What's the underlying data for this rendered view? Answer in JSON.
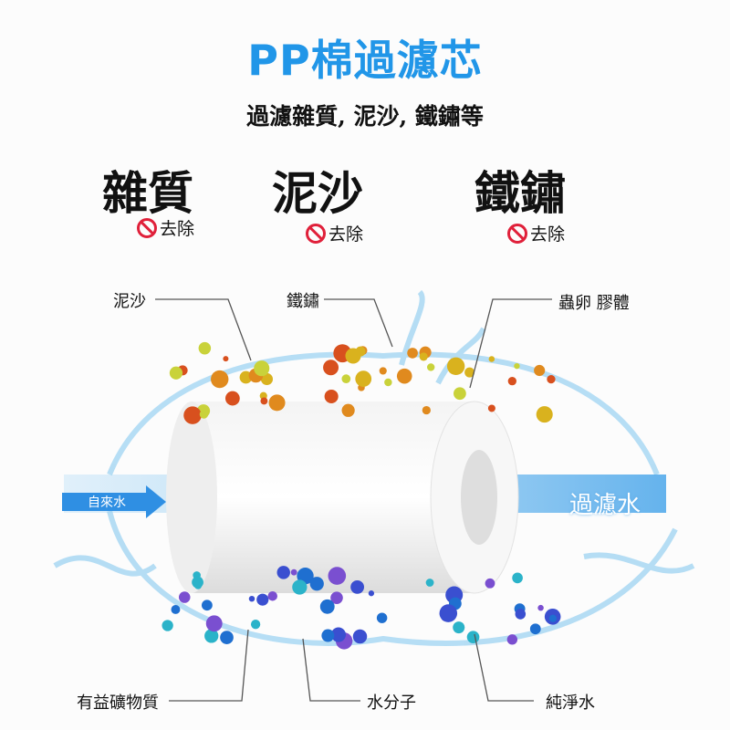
{
  "header": {
    "title": "PP棉過濾芯",
    "subtitle": "過濾雜質, 泥沙, 鐵鏽等"
  },
  "removed": [
    {
      "name": "雜質",
      "action": "去除",
      "icon": "prohibited-icon"
    },
    {
      "name": "泥沙",
      "action": "去除",
      "icon": "prohibited-icon"
    },
    {
      "name": "鐵鏽",
      "action": "去除",
      "icon": "prohibited-icon"
    }
  ],
  "callouts": {
    "top": [
      "泥沙",
      "鐵鏽",
      "蟲卵 膠體"
    ],
    "bottom": [
      "有益礦物質",
      "水分子",
      "純淨水"
    ]
  },
  "flow": {
    "input": "自來水",
    "output": "過濾水"
  },
  "colors": {
    "title": "#2196e8",
    "prohibit": "#e0203a",
    "impurity": "#e08a1e",
    "mineral": "#1f6fd0",
    "water": "#7cc4ee"
  }
}
